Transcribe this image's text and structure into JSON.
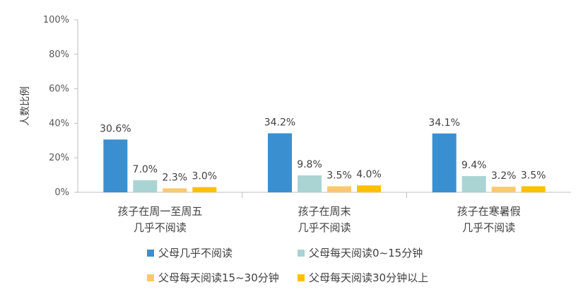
{
  "chart_data": {
    "type": "bar",
    "ylabel": "人数比例",
    "ylim": [
      0,
      100
    ],
    "yticks": [
      "0%",
      "20%",
      "40%",
      "60%",
      "80%",
      "100%"
    ],
    "categories": [
      [
        "孩子在周一至周五",
        "几乎不阅读"
      ],
      [
        "孩子在周末",
        "几乎不阅读"
      ],
      [
        "孩子在寒暑假",
        "几乎不阅读"
      ]
    ],
    "series": [
      {
        "name": "父母几乎不阅读",
        "color": "#3A8FD0",
        "values": [
          30.6,
          34.2,
          34.1
        ],
        "labels": [
          "30.6%",
          "34.2%",
          "34.1%"
        ]
      },
      {
        "name": "父母每天阅读0~15分钟",
        "color": "#A9D4D3",
        "values": [
          7.0,
          9.8,
          9.4
        ],
        "labels": [
          "7.0%",
          "9.8%",
          "9.4%"
        ]
      },
      {
        "name": "父母每天阅读15~30分钟",
        "color": "#FCC96A",
        "values": [
          2.3,
          3.5,
          3.2
        ],
        "labels": [
          "2.3%",
          "3.5%",
          "3.2%"
        ]
      },
      {
        "name": "父母每天阅读30分钟以上",
        "color": "#FFC000",
        "values": [
          3.0,
          4.0,
          3.5
        ],
        "labels": [
          "3.0%",
          "4.0%",
          "3.5%"
        ]
      }
    ],
    "legend_position": "bottom"
  }
}
